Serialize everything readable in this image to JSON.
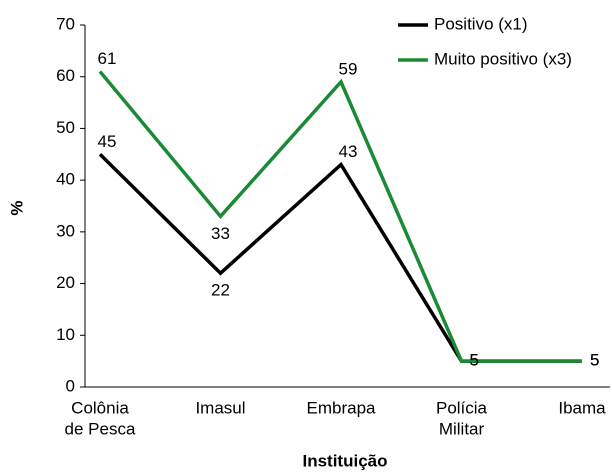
{
  "chart_data": {
    "type": "line",
    "xlabel": "Instituição",
    "ylabel": "%",
    "categories": [
      [
        "Colônia",
        "de Pesca"
      ],
      [
        "Imasul"
      ],
      [
        "Embrapa"
      ],
      [
        "Polícia",
        "Militar"
      ],
      [
        "Ibama"
      ]
    ],
    "series": [
      {
        "name": "Positivo (x1)",
        "color": "#000000",
        "values": [
          45,
          22,
          43,
          5,
          5
        ]
      },
      {
        "name": "Muito positivo (x3)",
        "color": "#1a8a35",
        "values": [
          61,
          33,
          59,
          5,
          5
        ]
      }
    ],
    "ylim": [
      0,
      70
    ],
    "yticks": [
      0,
      10,
      20,
      30,
      40,
      50,
      60,
      70
    ],
    "legend": "upper right"
  }
}
